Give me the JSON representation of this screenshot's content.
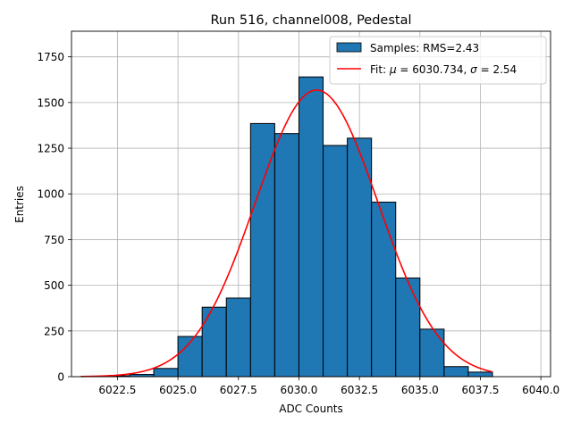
{
  "chart_data": {
    "type": "bar",
    "title": "Run 516, channel008, Pedestal",
    "xlabel": "ADC Counts",
    "ylabel": "Entries",
    "xlim": [
      6020.6,
      6040.4
    ],
    "ylim": [
      0,
      1890
    ],
    "xticks": [
      6022.5,
      6025.0,
      6027.5,
      6030.0,
      6032.5,
      6035.0,
      6037.5,
      6040.0
    ],
    "xtick_labels": [
      "6022.5",
      "6025.0",
      "6027.5",
      "6030.0",
      "6032.5",
      "6035.0",
      "6037.5",
      "6040.0"
    ],
    "yticks": [
      0,
      250,
      500,
      750,
      1000,
      1250,
      1500,
      1750
    ],
    "ytick_labels": [
      "0",
      "250",
      "500",
      "750",
      "1000",
      "1250",
      "1500",
      "1750"
    ],
    "grid": true,
    "legend_position": "top-right",
    "series": [
      {
        "name": "Samples: RMS=2.43",
        "kind": "histogram",
        "color": "#1f77b4",
        "edge_color": "#000000",
        "bin_edges": [
          6021,
          6022,
          6023,
          6024,
          6025,
          6026,
          6027,
          6028,
          6029,
          6030,
          6031,
          6032,
          6033,
          6034,
          6035,
          6036,
          6037,
          6038
        ],
        "values": [
          2,
          5,
          12,
          45,
          220,
          380,
          430,
          1385,
          1330,
          1640,
          1265,
          1305,
          955,
          540,
          260,
          55,
          25
        ]
      },
      {
        "name": "Fit: $\\mu$ = 6030.734, $\\sigma$ = 2.54",
        "legend_parts": [
          "Fit: ",
          "μ",
          " = 6030.734, ",
          "σ",
          " = 2.54"
        ],
        "kind": "gaussian",
        "color": "#ff0000",
        "mu": 6030.734,
        "sigma": 2.54,
        "amplitude": 1568,
        "x_range": [
          6021,
          6038
        ]
      }
    ]
  }
}
